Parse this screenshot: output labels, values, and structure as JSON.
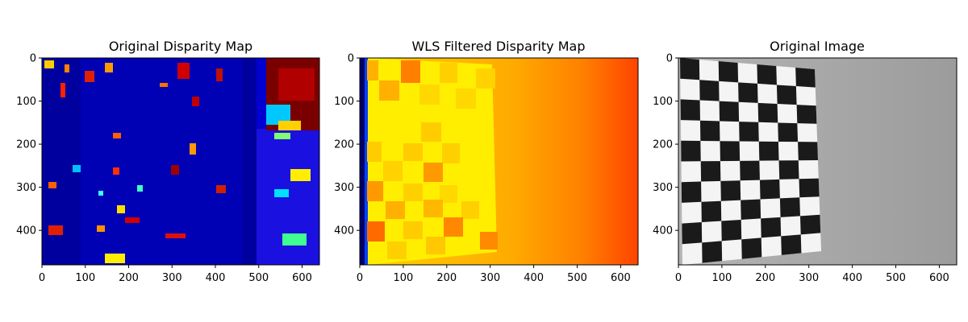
{
  "chart_data": [
    {
      "type": "heatmap",
      "title": "Original Disparity Map",
      "colormap": "jet",
      "xlim": [
        0,
        640
      ],
      "ylim": [
        480,
        0
      ],
      "xticks": [
        0,
        100,
        200,
        300,
        400,
        500,
        600
      ],
      "yticks": [
        0,
        100,
        200,
        300,
        400
      ],
      "grid": false
    },
    {
      "type": "heatmap",
      "title": "WLS Filtered Disparity Map",
      "colormap": "jet",
      "xlim": [
        0,
        640
      ],
      "ylim": [
        480,
        0
      ],
      "xticks": [
        0,
        100,
        200,
        300,
        400,
        500,
        600
      ],
      "yticks": [
        0,
        100,
        200,
        300,
        400
      ],
      "grid": false
    },
    {
      "type": "heatmap",
      "title": "Original Image",
      "colormap": "gray",
      "xlim": [
        0,
        640
      ],
      "ylim": [
        480,
        0
      ],
      "xticks": [
        0,
        100,
        200,
        300,
        400,
        500,
        600
      ],
      "yticks": [
        0,
        100,
        200,
        300,
        400
      ],
      "grid": false
    }
  ]
}
